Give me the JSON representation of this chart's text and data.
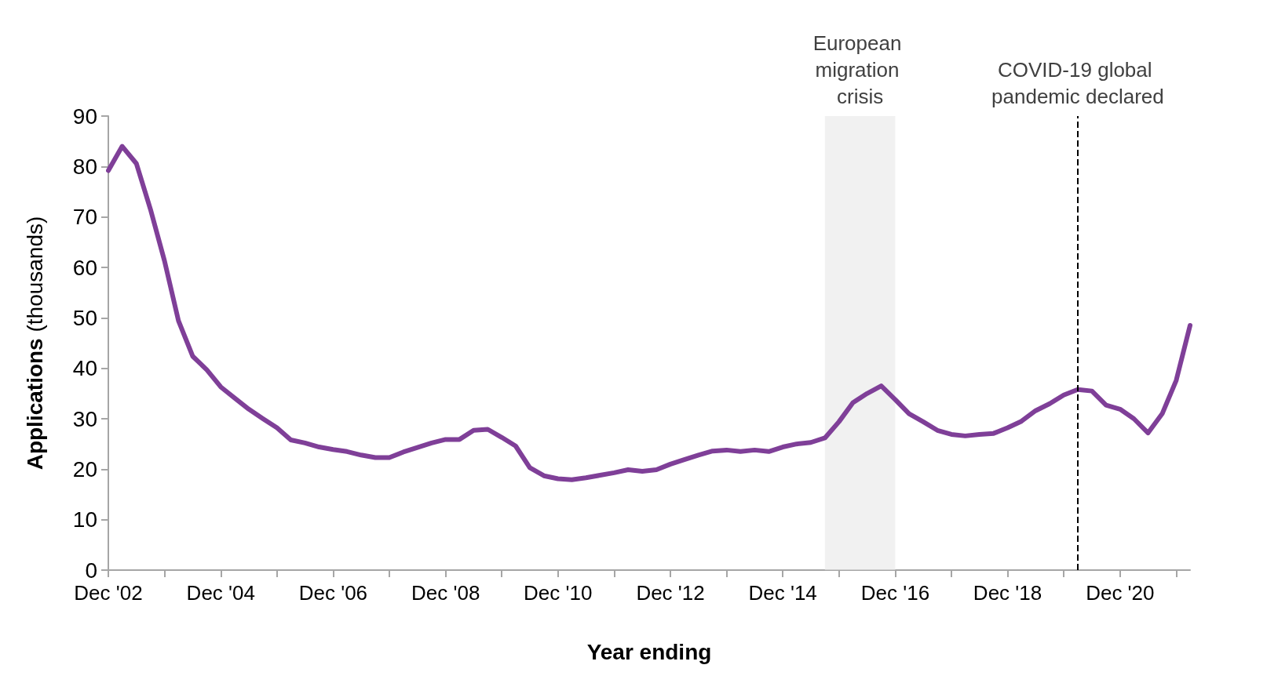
{
  "chart_data": {
    "type": "line",
    "xlabel": "Year ending",
    "ylabel": "Applications (thousands)",
    "x": [
      "2002-12",
      "2003-03",
      "2003-06",
      "2003-09",
      "2003-12",
      "2004-03",
      "2004-06",
      "2004-09",
      "2004-12",
      "2005-03",
      "2005-06",
      "2005-09",
      "2005-12",
      "2006-03",
      "2006-06",
      "2006-09",
      "2006-12",
      "2007-03",
      "2007-06",
      "2007-09",
      "2007-12",
      "2008-03",
      "2008-06",
      "2008-09",
      "2008-12",
      "2009-03",
      "2009-06",
      "2009-09",
      "2009-12",
      "2010-03",
      "2010-06",
      "2010-09",
      "2010-12",
      "2011-03",
      "2011-06",
      "2011-09",
      "2011-12",
      "2012-03",
      "2012-06",
      "2012-09",
      "2012-12",
      "2013-03",
      "2013-06",
      "2013-09",
      "2013-12",
      "2014-03",
      "2014-06",
      "2014-09",
      "2014-12",
      "2015-03",
      "2015-06",
      "2015-09",
      "2015-12",
      "2016-03",
      "2016-06",
      "2016-09",
      "2016-12",
      "2017-03",
      "2017-06",
      "2017-09",
      "2017-12",
      "2018-03",
      "2018-06",
      "2018-09",
      "2018-12",
      "2019-03",
      "2019-06",
      "2019-09",
      "2019-12",
      "2020-03",
      "2020-06",
      "2020-09",
      "2020-12",
      "2021-03",
      "2021-06",
      "2021-09",
      "2021-12",
      "2022-03"
    ],
    "series": [
      {
        "color": "#7f3f98",
        "values": [
          79.2,
          84,
          80.6,
          71.5,
          61.3,
          49.4,
          42.4,
          39.7,
          36.3,
          34.1,
          31.9,
          30,
          28.2,
          25.8,
          25.2,
          24.4,
          23.9,
          23.5,
          22.8,
          22.3,
          22.3,
          23.4,
          24.3,
          25.2,
          25.9,
          25.9,
          27.7,
          27.9,
          26.3,
          24.6,
          20.3,
          18.7,
          18.1,
          17.9,
          18.3,
          18.8,
          19.3,
          19.9,
          19.6,
          19.9,
          21,
          21.9,
          22.8,
          23.6,
          23.8,
          23.5,
          23.8,
          23.5,
          24.4,
          25,
          25.3,
          26.2,
          29.4,
          33.2,
          35,
          36.5,
          33.8,
          31,
          29.4,
          27.7,
          26.9,
          26.6,
          26.9,
          27.1,
          28.2,
          29.5,
          31.6,
          33,
          34.7,
          35.8,
          35.5,
          32.7,
          31.9,
          30,
          27.2,
          31,
          37.6,
          48.5
        ]
      }
    ],
    "xlim": [
      "2002-12",
      "2022-03"
    ],
    "xticks": [
      {
        "value": "2002-12",
        "label": "Dec '02"
      },
      {
        "value": "2003-12",
        "label": null
      },
      {
        "value": "2004-12",
        "label": "Dec '04"
      },
      {
        "value": "2005-12",
        "label": null
      },
      {
        "value": "2006-12",
        "label": "Dec '06"
      },
      {
        "value": "2007-12",
        "label": null
      },
      {
        "value": "2008-12",
        "label": "Dec '08"
      },
      {
        "value": "2009-12",
        "label": null
      },
      {
        "value": "2010-12",
        "label": "Dec '10"
      },
      {
        "value": "2011-12",
        "label": null
      },
      {
        "value": "2012-12",
        "label": "Dec '12"
      },
      {
        "value": "2013-12",
        "label": null
      },
      {
        "value": "2014-12",
        "label": "Dec '14"
      },
      {
        "value": "2015-12",
        "label": null
      },
      {
        "value": "2016-12",
        "label": "Dec '16"
      },
      {
        "value": "2017-12",
        "label": null
      },
      {
        "value": "2018-12",
        "label": "Dec '18"
      },
      {
        "value": "2019-12",
        "label": null
      },
      {
        "value": "2020-12",
        "label": "Dec '20"
      },
      {
        "value": "2021-12",
        "label": null
      }
    ],
    "ylim": [
      0,
      90
    ],
    "yticks": [
      0,
      10,
      20,
      30,
      40,
      50,
      60,
      70,
      80,
      90
    ],
    "line_style": "solid",
    "marker": "none",
    "bands": [
      {
        "axis": "x",
        "from": "2015-09",
        "to": "2016-12",
        "label": "European migration crisis",
        "color": "#e8e8e8"
      }
    ],
    "ref_lines": [
      {
        "axis": "x",
        "value": "2020-03",
        "label": "COVID-19 global pandemic declared",
        "color": "#000000",
        "line_style": "dashed"
      }
    ]
  }
}
